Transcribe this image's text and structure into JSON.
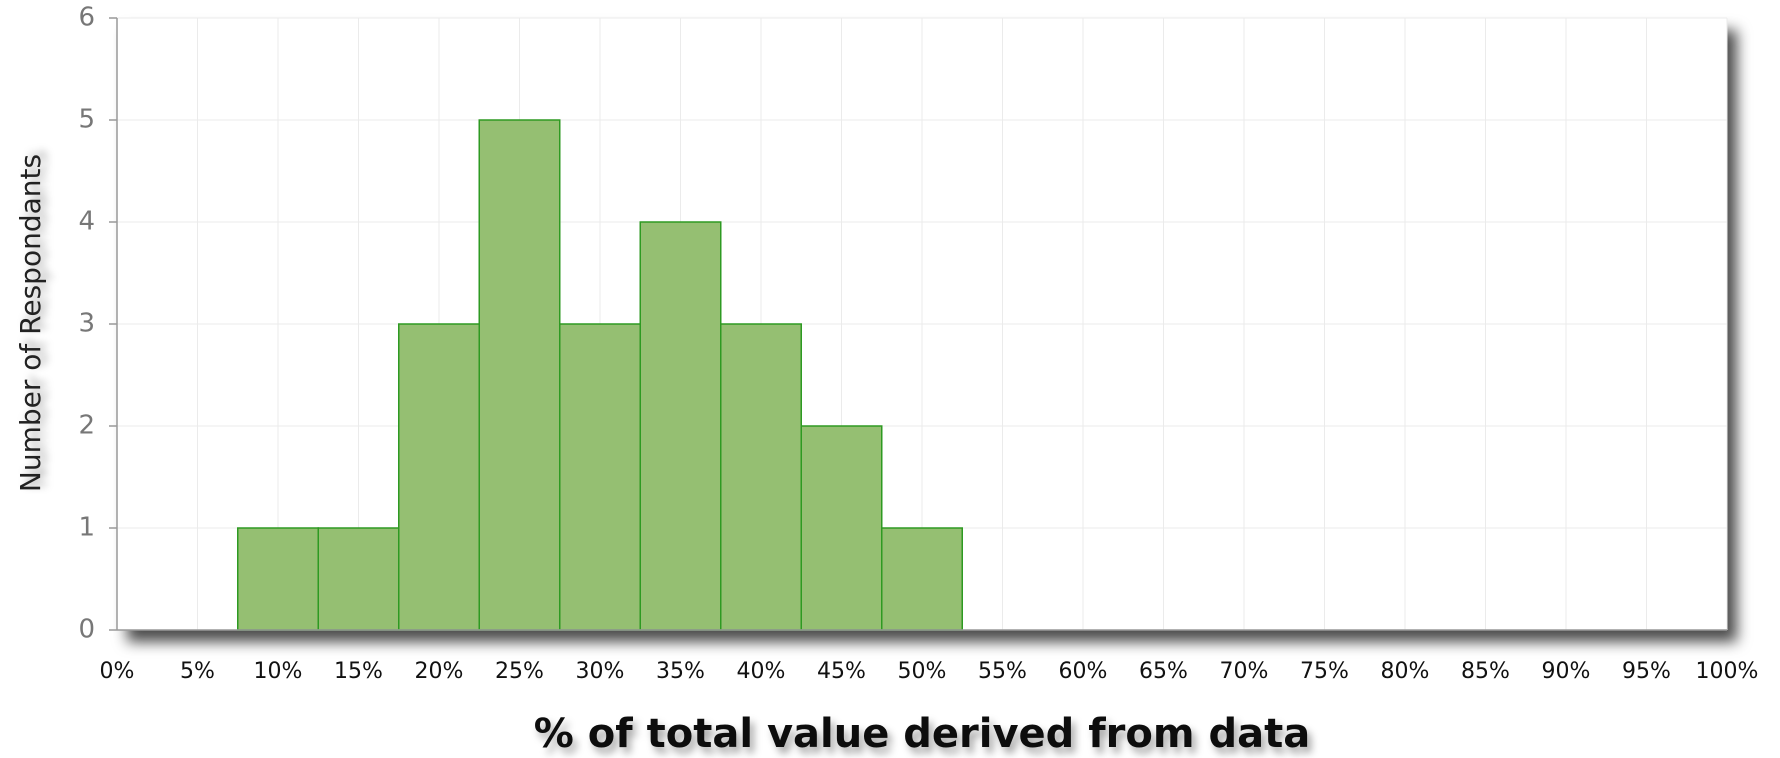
{
  "chart_data": {
    "type": "histogram",
    "x_label": "% of total value derived from data",
    "y_label": "Number of Respondants",
    "bins": [
      7.5,
      12.5,
      17.5,
      22.5,
      27.5,
      32.5,
      37.5,
      42.5,
      47.5,
      52.5
    ],
    "values": [
      1,
      1,
      3,
      5,
      3,
      4,
      3,
      2,
      1
    ],
    "color": "#95bf72",
    "edge_color": "#2e9a22",
    "xlim": [
      0,
      100
    ],
    "xticks": [
      {
        "value": 0,
        "label": "0%"
      },
      {
        "value": 5,
        "label": "5%"
      },
      {
        "value": 10,
        "label": "10%"
      },
      {
        "value": 15,
        "label": "15%"
      },
      {
        "value": 20,
        "label": "20%"
      },
      {
        "value": 25,
        "label": "25%"
      },
      {
        "value": 30,
        "label": "30%"
      },
      {
        "value": 35,
        "label": "35%"
      },
      {
        "value": 40,
        "label": "40%"
      },
      {
        "value": 45,
        "label": "45%"
      },
      {
        "value": 50,
        "label": "50%"
      },
      {
        "value": 55,
        "label": "55%"
      },
      {
        "value": 60,
        "label": "60%"
      },
      {
        "value": 65,
        "label": "65%"
      },
      {
        "value": 70,
        "label": "70%"
      },
      {
        "value": 75,
        "label": "75%"
      },
      {
        "value": 80,
        "label": "80%"
      },
      {
        "value": 85,
        "label": "85%"
      },
      {
        "value": 90,
        "label": "90%"
      },
      {
        "value": 95,
        "label": "95%"
      },
      {
        "value": 100,
        "label": "100%"
      }
    ],
    "ylim": [
      0,
      6
    ],
    "yticks": [
      0,
      1,
      2,
      3,
      4,
      5,
      6
    ],
    "grid": true
  }
}
